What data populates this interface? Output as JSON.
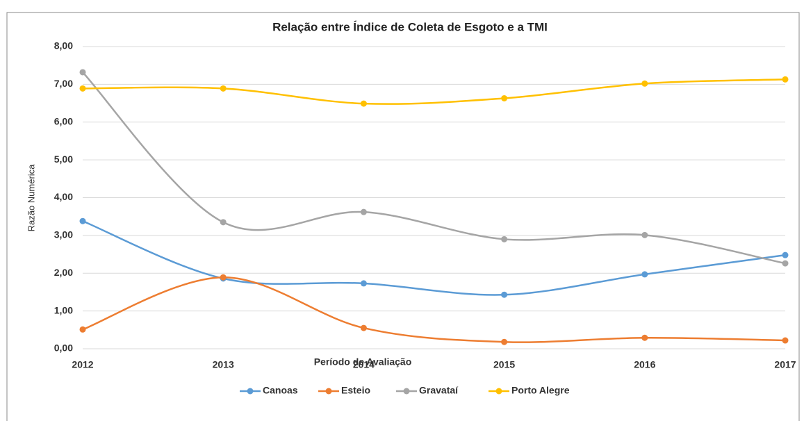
{
  "chart_data": {
    "type": "line",
    "title": "Relação entre Índice de Coleta de Esgoto  e a TMI",
    "x_label": "Período de Avaliação",
    "y_label": "Razão Numérica",
    "categories": [
      "2012",
      "2013",
      "2014",
      "2015",
      "2016",
      "2017"
    ],
    "series": [
      {
        "name": "Canoas",
        "color": "#5b9bd5",
        "values": [
          3.38,
          1.86,
          1.73,
          1.43,
          1.97,
          2.48
        ]
      },
      {
        "name": "Esteio",
        "color": "#ed7d31",
        "values": [
          0.51,
          1.89,
          0.55,
          0.18,
          0.29,
          0.22
        ]
      },
      {
        "name": "Gravataí",
        "color": "#a5a5a5",
        "values": [
          7.32,
          3.35,
          3.62,
          2.9,
          3.01,
          2.26
        ]
      },
      {
        "name": "Porto Alegre",
        "color": "#ffc000",
        "values": [
          6.89,
          6.89,
          6.49,
          6.63,
          7.02,
          7.13
        ]
      }
    ],
    "ylim": [
      0,
      8
    ],
    "yticks": [
      {
        "value": 0,
        "label": "0,00"
      },
      {
        "value": 1,
        "label": "1,00"
      },
      {
        "value": 2,
        "label": "2,00"
      },
      {
        "value": 3,
        "label": "3,00"
      },
      {
        "value": 4,
        "label": "4,00"
      },
      {
        "value": 5,
        "label": "5,00"
      },
      {
        "value": 6,
        "label": "6,00"
      },
      {
        "value": 7,
        "label": "7,00"
      },
      {
        "value": 8,
        "label": "8,00"
      }
    ],
    "grid": true,
    "smooth": true,
    "legend": "bottom"
  }
}
